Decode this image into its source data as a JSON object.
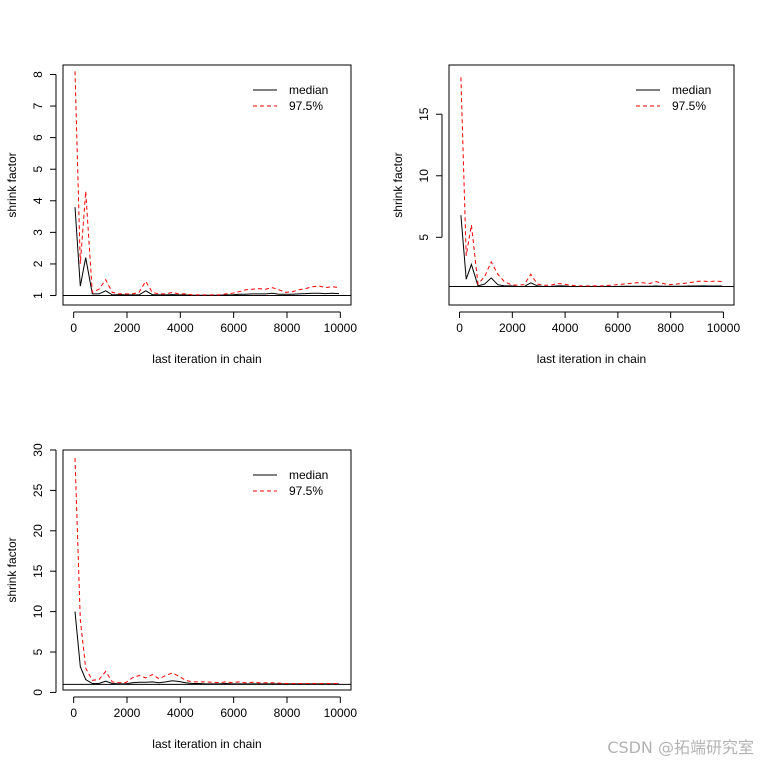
{
  "watermark": "CSDN @拓端研究室",
  "chart_data": [
    {
      "type": "line",
      "xlabel": "last iteration in chain",
      "ylabel": "shrink factor",
      "xlim": [
        -400,
        10400
      ],
      "ylim": [
        0.7,
        8.3
      ],
      "xticks": [
        0,
        2000,
        4000,
        6000,
        8000,
        10000
      ],
      "yticks": [
        1,
        2,
        3,
        4,
        5,
        6,
        7,
        8
      ],
      "reference_line": 1,
      "legend": {
        "position": "top-right",
        "entries": [
          "median",
          "97.5%"
        ]
      },
      "x": [
        50,
        250,
        450,
        700,
        950,
        1200,
        1450,
        1700,
        1950,
        2200,
        2450,
        2700,
        2950,
        3200,
        3450,
        3700,
        3950,
        4200,
        4450,
        4700,
        4950,
        5200,
        5450,
        5700,
        5950,
        6200,
        6450,
        6700,
        6950,
        7200,
        7450,
        7700,
        7950,
        8200,
        8450,
        8700,
        8950,
        9200,
        9450,
        9700,
        9950
      ],
      "series": [
        {
          "name": "median",
          "color": "#000000",
          "dash": "solid",
          "values": [
            3.8,
            1.3,
            2.2,
            1.05,
            1.05,
            1.15,
            1.02,
            1.03,
            1.02,
            1.02,
            1.02,
            1.15,
            1.03,
            1.02,
            1.02,
            1.03,
            1.02,
            1.02,
            1.01,
            1.01,
            1.01,
            1.01,
            1.01,
            1.02,
            1.02,
            1.04,
            1.04,
            1.05,
            1.05,
            1.05,
            1.07,
            1.04,
            1.04,
            1.04,
            1.05,
            1.06,
            1.07,
            1.07,
            1.06,
            1.07,
            1.06
          ]
        },
        {
          "name": "97.5%",
          "color": "#ff0000",
          "dash": "dashed",
          "values": [
            8.1,
            2.0,
            4.3,
            1.1,
            1.2,
            1.5,
            1.1,
            1.05,
            1.05,
            1.05,
            1.1,
            1.45,
            1.1,
            1.05,
            1.05,
            1.1,
            1.05,
            1.05,
            1.02,
            1.02,
            1.02,
            1.02,
            1.02,
            1.05,
            1.07,
            1.12,
            1.18,
            1.2,
            1.22,
            1.2,
            1.25,
            1.18,
            1.1,
            1.12,
            1.18,
            1.22,
            1.28,
            1.3,
            1.25,
            1.28,
            1.25
          ]
        }
      ]
    },
    {
      "type": "line",
      "xlabel": "last iteration in chain",
      "ylabel": "shrink factor",
      "xlim": [
        -400,
        10400
      ],
      "ylim": [
        -0.5,
        19.0
      ],
      "xticks": [
        0,
        2000,
        4000,
        6000,
        8000,
        10000
      ],
      "yticks": [
        5,
        10,
        15
      ],
      "reference_line": 1,
      "legend": {
        "position": "top-right",
        "entries": [
          "median",
          "97.5%"
        ]
      },
      "x": [
        50,
        250,
        450,
        700,
        950,
        1200,
        1450,
        1700,
        1950,
        2200,
        2450,
        2700,
        2950,
        3200,
        3450,
        3700,
        3950,
        4200,
        4450,
        4700,
        4950,
        5200,
        5450,
        5700,
        5950,
        6200,
        6450,
        6700,
        6950,
        7200,
        7450,
        7700,
        7950,
        8200,
        8450,
        8700,
        8950,
        9200,
        9450,
        9700,
        9950
      ],
      "series": [
        {
          "name": "median",
          "color": "#000000",
          "dash": "solid",
          "values": [
            6.8,
            1.6,
            2.8,
            1.05,
            1.2,
            1.7,
            1.15,
            1.05,
            1.05,
            1.0,
            1.0,
            1.3,
            1.05,
            1.0,
            1.0,
            1.05,
            1.05,
            1.0,
            1.0,
            1.0,
            1.0,
            1.0,
            1.0,
            1.0,
            1.0,
            1.02,
            1.02,
            1.03,
            1.03,
            1.03,
            1.04,
            1.02,
            1.02,
            1.02,
            1.03,
            1.04,
            1.04,
            1.05,
            1.04,
            1.04,
            1.04
          ]
        },
        {
          "name": "97.5%",
          "color": "#ff0000",
          "dash": "dashed",
          "values": [
            18.0,
            3.5,
            6.0,
            1.2,
            1.8,
            3.0,
            2.0,
            1.4,
            1.15,
            1.1,
            1.15,
            2.0,
            1.2,
            1.1,
            1.1,
            1.25,
            1.2,
            1.1,
            1.05,
            1.05,
            1.05,
            1.05,
            1.05,
            1.1,
            1.15,
            1.2,
            1.25,
            1.3,
            1.3,
            1.25,
            1.4,
            1.25,
            1.15,
            1.2,
            1.25,
            1.3,
            1.4,
            1.45,
            1.4,
            1.45,
            1.4
          ]
        }
      ]
    },
    {
      "type": "line",
      "xlabel": "last iteration in chain",
      "ylabel": "shrink factor",
      "xlim": [
        -400,
        10400
      ],
      "ylim": [
        0.3,
        30.0
      ],
      "xticks": [
        0,
        2000,
        4000,
        6000,
        8000,
        10000
      ],
      "yticks": [
        0,
        5,
        10,
        15,
        20,
        25,
        30
      ],
      "reference_line": 1,
      "legend": {
        "position": "top-right",
        "entries": [
          "median",
          "97.5%"
        ]
      },
      "x": [
        50,
        250,
        450,
        700,
        950,
        1200,
        1450,
        1700,
        1950,
        2200,
        2450,
        2700,
        2950,
        3200,
        3450,
        3700,
        3950,
        4200,
        4450,
        4700,
        4950,
        5200,
        5450,
        5700,
        5950,
        6200,
        6450,
        6700,
        6950,
        7200,
        7450,
        7700,
        7950,
        8200,
        8450,
        8700,
        8950,
        9200,
        9450,
        9700,
        9950
      ],
      "series": [
        {
          "name": "median",
          "color": "#000000",
          "dash": "solid",
          "values": [
            10.0,
            3.2,
            1.6,
            1.1,
            1.1,
            1.4,
            1.1,
            1.05,
            1.05,
            1.2,
            1.25,
            1.25,
            1.3,
            1.2,
            1.3,
            1.45,
            1.35,
            1.2,
            1.1,
            1.1,
            1.05,
            1.05,
            1.05,
            1.1,
            1.05,
            1.05,
            1.05,
            1.05,
            1.05,
            1.05,
            1.05,
            1.05,
            1.05,
            1.05,
            1.05,
            1.05,
            1.05,
            1.05,
            1.05,
            1.05,
            1.05
          ]
        },
        {
          "name": "97.5%",
          "color": "#ff0000",
          "dash": "dashed",
          "values": [
            29.0,
            9.0,
            3.0,
            1.5,
            1.6,
            2.6,
            1.3,
            1.2,
            1.2,
            1.8,
            2.1,
            1.8,
            2.2,
            1.7,
            2.1,
            2.4,
            2.0,
            1.5,
            1.3,
            1.3,
            1.3,
            1.25,
            1.2,
            1.3,
            1.2,
            1.3,
            1.2,
            1.25,
            1.2,
            1.2,
            1.2,
            1.15,
            1.1,
            1.1,
            1.1,
            1.1,
            1.1,
            1.1,
            1.1,
            1.1,
            1.1
          ]
        }
      ]
    }
  ]
}
